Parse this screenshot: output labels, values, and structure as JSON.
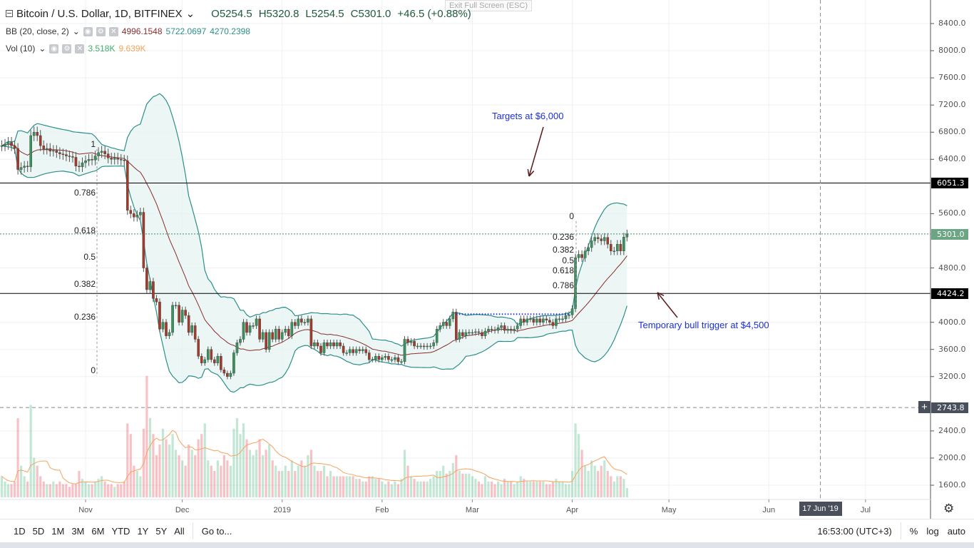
{
  "header": {
    "symbol": "Bitcoin / U.S. Dollar, 1D, BITFINEX",
    "open": "O5254.5",
    "high": "H5320.8",
    "low": "L5254.5",
    "close": "C5301.0",
    "change": "+46.5 (+0.88%)",
    "exit_fullscreen": "Exit Full Screen (ESC)"
  },
  "indicators": {
    "bb": {
      "label": "BB (20, close, 2)",
      "basis": "4996.1548",
      "upper": "5722.0697",
      "lower": "4270.2398"
    },
    "vol": {
      "label": "Vol (10)",
      "value": "3.518K",
      "ma": "9.639K"
    }
  },
  "colors": {
    "up": "#3f8f5f",
    "down": "#a8372e",
    "band": "#2c8f8a",
    "basis": "#8a2d2d",
    "vol_ma": "#f7a35c",
    "annotation": "#1b2fd6"
  },
  "chart_data": {
    "type": "candlestick",
    "x_ticks": [
      {
        "label": "Nov",
        "date": "2018-11-01"
      },
      {
        "label": "Dec",
        "date": "2018-12-01"
      },
      {
        "label": "2019",
        "date": "2019-01-01"
      },
      {
        "label": "Feb",
        "date": "2019-02-01"
      },
      {
        "label": "Mar",
        "date": "2019-03-01"
      },
      {
        "label": "Apr",
        "date": "2019-04-01"
      },
      {
        "label": "May",
        "date": "2019-05-01"
      },
      {
        "label": "Jun",
        "date": "2019-06-01"
      },
      {
        "label": "Jul",
        "date": "2019-07-01"
      }
    ],
    "y_ticks": [
      "8400.0",
      "8000.0",
      "7600.0",
      "7200.0",
      "6800.0",
      "6400.0",
      "5600.0",
      "4800.0",
      "4000.0",
      "3600.0",
      "3200.0",
      "2400.0",
      "2000.0",
      "1600.0"
    ],
    "price_badges": [
      {
        "value": "6051.3",
        "kind": "line"
      },
      {
        "value": "5301.0",
        "kind": "last"
      },
      {
        "value": "4424.2",
        "kind": "line"
      },
      {
        "value": "2743.8",
        "kind": "crosshair"
      }
    ],
    "crosshair": {
      "date_label": "17 Jun '19",
      "date": "2019-06-17",
      "price": 2743.8
    },
    "months": [
      {
        "month": "2018-10",
        "first_day": 6,
        "close": [
          6600,
          6620,
          6650,
          6600,
          6560,
          6250,
          6280,
          6300,
          6290,
          6750,
          6800,
          6750,
          6600,
          6550,
          6560,
          6520,
          6530,
          6500,
          6480,
          6470,
          6450,
          6440,
          6430,
          6300,
          6290,
          6350
        ],
        "volume_k": [
          8,
          6,
          5,
          5,
          6,
          30,
          12,
          8,
          6,
          35,
          15,
          12,
          8,
          6,
          5,
          5,
          6,
          5,
          6,
          5,
          5,
          4,
          5,
          5,
          10,
          7
        ]
      },
      {
        "month": "2018-11",
        "first_day": 1,
        "close": [
          6380,
          6400,
          6390,
          6450,
          6500,
          6520,
          6480,
          6420,
          6400,
          6420,
          6400,
          6390,
          6380,
          5650,
          5600,
          5550,
          5580,
          5620,
          4800,
          4480,
          4600,
          4350,
          4300,
          3900,
          4000,
          3800,
          3850,
          4250,
          4250,
          4000
        ],
        "volume_k": [
          6,
          5,
          5,
          6,
          7,
          8,
          6,
          5,
          5,
          4,
          5,
          5,
          6,
          28,
          24,
          12,
          10,
          8,
          26,
          46,
          30,
          24,
          16,
          20,
          26,
          22,
          20,
          24,
          18,
          16
        ]
      },
      {
        "month": "2018-12",
        "first_day": 1,
        "close": [
          4180,
          4100,
          3850,
          3950,
          3750,
          3500,
          3400,
          3450,
          3600,
          3450,
          3400,
          3500,
          3300,
          3250,
          3200,
          3250,
          3550,
          3700,
          3750,
          4000,
          3850,
          3950,
          3950,
          4050,
          3750,
          3850,
          3600,
          3850,
          3750,
          3900,
          3750
        ],
        "volume_k": [
          14,
          12,
          20,
          18,
          16,
          22,
          24,
          28,
          14,
          12,
          10,
          14,
          12,
          16,
          14,
          12,
          26,
          30,
          24,
          28,
          22,
          18,
          16,
          18,
          22,
          16,
          18,
          20,
          14,
          12,
          10
        ]
      },
      {
        "month": "2019-01",
        "first_day": 1,
        "close": [
          3850,
          3900,
          3800,
          4000,
          3950,
          4050,
          4000,
          4000,
          4050,
          3650,
          3700,
          3650,
          3550,
          3700,
          3650,
          3700,
          3650,
          3700,
          3650,
          3550,
          3550,
          3600,
          3550,
          3600,
          3580,
          3600,
          3550,
          3450,
          3450,
          3500,
          3450
        ],
        "volume_k": [
          10,
          12,
          10,
          14,
          10,
          12,
          14,
          12,
          16,
          18,
          12,
          10,
          10,
          12,
          8,
          10,
          8,
          8,
          8,
          8,
          8,
          8,
          8,
          7,
          7,
          6,
          6,
          8,
          8,
          7,
          7
        ]
      },
      {
        "month": "2019-02",
        "first_day": 1,
        "close": [
          3480,
          3500,
          3450,
          3450,
          3480,
          3420,
          3420,
          3750,
          3700,
          3720,
          3650,
          3650,
          3650,
          3640,
          3650,
          3650,
          3700,
          3900,
          3950,
          4000,
          3950,
          4050,
          4150,
          3750,
          3850,
          3800,
          3850,
          3850
        ],
        "volume_k": [
          6,
          5,
          6,
          5,
          6,
          5,
          7,
          18,
          12,
          8,
          7,
          6,
          6,
          6,
          6,
          7,
          8,
          10,
          10,
          12,
          9,
          10,
          13,
          16,
          10,
          9,
          9,
          9
        ]
      },
      {
        "month": "2019-03",
        "first_day": 1,
        "close": [
          3850,
          3860,
          3850,
          3800,
          3870,
          3900,
          3890,
          3880,
          3920,
          3950,
          3880,
          3900,
          3880,
          3900,
          3950,
          4050,
          4000,
          4050,
          4050,
          4000,
          4050,
          4000,
          4050,
          4030,
          4000,
          3950,
          4050,
          4050,
          4050,
          4100,
          4110
        ],
        "volume_k": [
          8,
          7,
          6,
          5,
          8,
          6,
          6,
          5,
          6,
          5,
          7,
          6,
          6,
          5,
          6,
          8,
          7,
          6,
          6,
          6,
          6,
          6,
          6,
          5,
          5,
          6,
          7,
          6,
          6,
          5,
          5
        ]
      },
      {
        "month": "2019-04",
        "first_day": 1,
        "close": [
          4200,
          4950,
          5000,
          4950,
          5050,
          5100,
          5200,
          5250,
          5230,
          5200,
          5250,
          5150,
          5050,
          5050,
          5150,
          5050,
          5254.5,
          5301
        ],
        "volume_k": [
          10,
          28,
          24,
          18,
          12,
          10,
          14,
          12,
          10,
          12,
          14,
          10,
          8,
          6,
          8,
          8,
          7,
          3.518
        ]
      }
    ],
    "horizontal_lines": [
      6051.3,
      4424.2
    ],
    "fib_left": {
      "levels": [
        "1",
        "0.786",
        "0.618",
        "0.5",
        "0.382",
        "0.236",
        "0"
      ],
      "high": 6550,
      "low": 3219
    },
    "fib_right": {
      "levels": [
        "0",
        "0.236",
        "0.382",
        "0.5",
        "0.618",
        "0.786"
      ],
      "high": 5490,
      "low": 4191
    },
    "dotted_level": {
      "price": 4120,
      "from": "2019-02-24",
      "to": "2019-03-31"
    },
    "annotations": [
      {
        "text": "Targets at $6,000"
      },
      {
        "text": "Temporary bull trigger at $4,500"
      }
    ]
  },
  "bottom": {
    "ranges": [
      "1D",
      "5D",
      "1M",
      "3M",
      "6M",
      "YTD",
      "1Y",
      "5Y",
      "All"
    ],
    "goto": "Go to...",
    "time": "16:53:00 (UTC+3)",
    "percent": "%",
    "log": "log",
    "auto": "auto"
  }
}
